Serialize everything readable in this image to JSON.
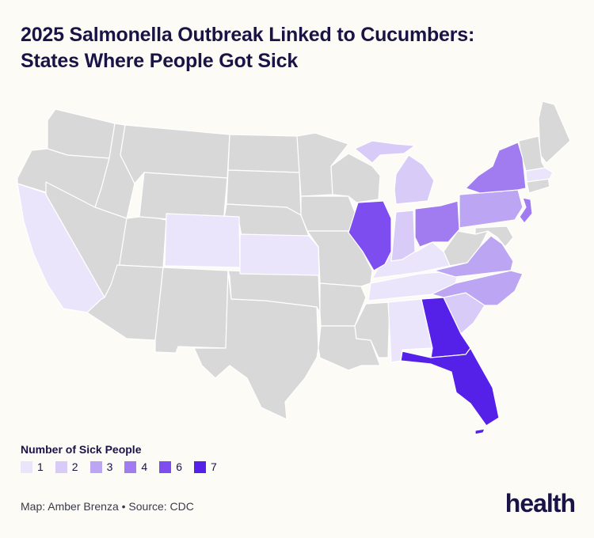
{
  "title": {
    "line1": "2025 Salmonella Outbreak Linked to Cucumbers:",
    "line2": "States Where People Got Sick"
  },
  "legend": {
    "title": "Number of Sick People",
    "items": [
      {
        "label": "1",
        "color": "#ebe5fc"
      },
      {
        "label": "2",
        "color": "#d9cbf7"
      },
      {
        "label": "3",
        "color": "#bca6f3"
      },
      {
        "label": "4",
        "color": "#a07cf0"
      },
      {
        "label": "6",
        "color": "#7d4df0"
      },
      {
        "label": "7",
        "color": "#5520e8"
      }
    ]
  },
  "colors": {
    "background": "#fcfbf6",
    "no_cases": "#d8d8d8",
    "borders": "#ffffff",
    "title_text": "#1a1446"
  },
  "map_data": {
    "sick_people_by_state": {
      "California": 1,
      "Colorado": 1,
      "Kansas": 1,
      "Kentucky": 1,
      "Tennessee": 1,
      "Alabama": 1,
      "Massachusetts": 1,
      "Michigan": 2,
      "Indiana": 2,
      "South Carolina": 2,
      "Pennsylvania": 3,
      "North Carolina": 3,
      "Virginia": 3,
      "New York": 4,
      "Ohio": 4,
      "New Jersey": 4,
      "Illinois": 6,
      "Georgia": 7,
      "Florida": 7
    }
  },
  "credit": "Map: Amber Brenza • Source: CDC",
  "logo": "health"
}
